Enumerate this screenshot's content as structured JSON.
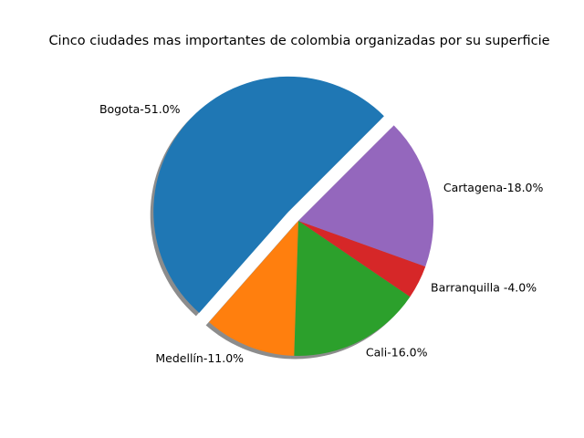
{
  "chart_data": {
    "type": "pie",
    "title": "Cinco ciudades mas importantes de colombia organizadas por su superficie",
    "slices": [
      {
        "label": "Bogota-51.0%",
        "value": 51.0,
        "color": "#1f77b4",
        "exploded": true
      },
      {
        "label": "Medellín-11.0%",
        "value": 11.0,
        "color": "#ff7f0e",
        "exploded": false
      },
      {
        "label": "Cali-16.0%",
        "value": 16.0,
        "color": "#2ca02c",
        "exploded": false
      },
      {
        "label": "Barranquilla -4.0%",
        "value": 4.0,
        "color": "#d62728",
        "exploded": false
      },
      {
        "label": "Cartagena-18.0%",
        "value": 18.0,
        "color": "#9467bd",
        "exploded": false
      }
    ],
    "start_angle_deg": 45,
    "direction": "counterclockwise",
    "shadow": true,
    "legend": "none",
    "grid": false
  }
}
